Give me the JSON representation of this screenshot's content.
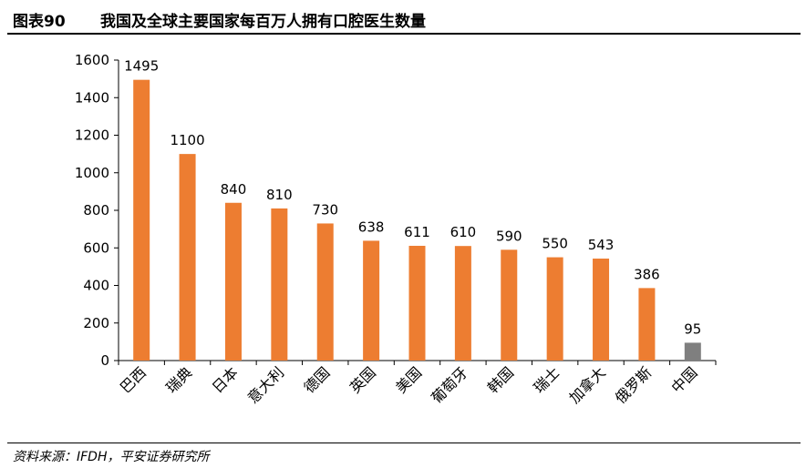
{
  "figure": {
    "number": "图表90",
    "title": "我国及全球主要国家每百万人拥有口腔医生数量"
  },
  "source": "资料来源：IFDH，平安证券研究所",
  "colors": {
    "bar": "#ED7D31",
    "highlight": "#7F7F7F",
    "axis": "#000000"
  },
  "chart_data": {
    "type": "bar",
    "title": "",
    "xlabel": "",
    "ylabel": "",
    "categories": [
      "巴西",
      "瑞典",
      "日本",
      "意大利",
      "德国",
      "英国",
      "美国",
      "葡萄牙",
      "韩国",
      "瑞士",
      "加拿大",
      "俄罗斯",
      "中国"
    ],
    "values": [
      1495,
      1100,
      840,
      810,
      730,
      638,
      611,
      610,
      590,
      550,
      543,
      386,
      95
    ],
    "highlight_category": "中国",
    "ylim": [
      0,
      1600
    ],
    "yticks": [
      0,
      200,
      400,
      600,
      800,
      1000,
      1200,
      1400,
      1600
    ],
    "grid": false,
    "legend": "none",
    "data_labels": true
  }
}
